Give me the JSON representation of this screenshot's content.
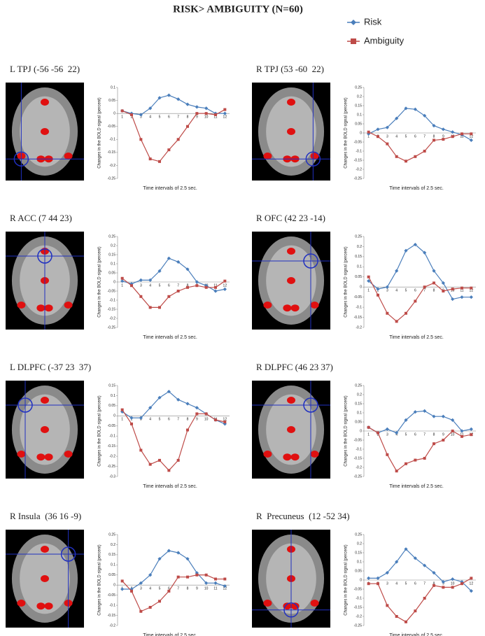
{
  "title": "RISK> AMBIGUITY (N=60)",
  "chart_data": [
    {
      "type": "line",
      "title": "L TPJ (-56 -56  22)",
      "ylabel": "Changes in the BOLD signal (percent)",
      "xlabel": "Time intervals of 2.5 sec.",
      "categories": [
        1,
        2,
        3,
        4,
        5,
        6,
        7,
        8,
        9,
        10,
        11,
        12
      ],
      "ylim": [
        -0.25,
        0.1
      ],
      "yticks": [
        0.1,
        0.05,
        0,
        -0.05,
        -0.1,
        -0.15,
        -0.2,
        -0.25
      ],
      "series": [
        {
          "name": "Risk",
          "color": "#4a7ebb",
          "values": [
            0.01,
            0,
            -0.005,
            0.02,
            0.06,
            0.07,
            0.055,
            0.035,
            0.025,
            0.02,
            0,
            0
          ]
        },
        {
          "name": "Ambiguity",
          "color": "#be4b48",
          "values": [
            0.01,
            -0.005,
            -0.1,
            -0.175,
            -0.185,
            -0.14,
            -0.1,
            -0.05,
            0,
            0,
            -0.005,
            0.015
          ]
        }
      ]
    },
    {
      "type": "line",
      "title": "R TPJ (53 -60  22)",
      "ylabel": "Changes in the BOLD signal (percent)",
      "xlabel": "Time intervals of 2.5 sec.",
      "categories": [
        1,
        2,
        3,
        4,
        5,
        6,
        7,
        8,
        9,
        10,
        11,
        12
      ],
      "ylim": [
        -0.25,
        0.25
      ],
      "yticks": [
        0.25,
        0.2,
        0.15,
        0.1,
        0.05,
        0,
        -0.05,
        -0.1,
        -0.15,
        -0.2,
        -0.25
      ],
      "series": [
        {
          "color": "#4a7ebb",
          "values": [
            -0.005,
            0.02,
            0.03,
            0.08,
            0.135,
            0.13,
            0.095,
            0.04,
            0.02,
            0.005,
            -0.01,
            -0.04
          ]
        },
        {
          "color": "#be4b48",
          "values": [
            0.005,
            -0.02,
            -0.06,
            -0.13,
            -0.155,
            -0.13,
            -0.1,
            -0.04,
            -0.035,
            -0.02,
            -0.005,
            -0.005
          ]
        }
      ]
    },
    {
      "type": "line",
      "title": "R ACC (7 44 23)",
      "ylabel": "Changes in the BOLD signal (percent)",
      "xlabel": "Time intervals of 2.5 sec.",
      "categories": [
        1,
        2,
        3,
        4,
        5,
        6,
        7,
        8,
        9,
        10,
        11,
        12
      ],
      "ylim": [
        -0.25,
        0.25
      ],
      "yticks": [
        0.25,
        0.2,
        0.15,
        0.1,
        0.05,
        0,
        -0.05,
        -0.1,
        -0.15,
        -0.2,
        -0.25
      ],
      "series": [
        {
          "color": "#4a7ebb",
          "values": [
            0.005,
            -0.01,
            0.01,
            0.01,
            0.06,
            0.13,
            0.11,
            0.07,
            0,
            -0.02,
            -0.05,
            -0.04
          ]
        },
        {
          "color": "#be4b48",
          "values": [
            0.02,
            -0.02,
            -0.08,
            -0.14,
            -0.14,
            -0.08,
            -0.05,
            -0.03,
            -0.02,
            -0.03,
            -0.03,
            0.005
          ]
        }
      ]
    },
    {
      "type": "line",
      "title": "R OFC (42 23 -14)",
      "ylabel": "Changes in the BOLD signal (percent)",
      "xlabel": "Time intervals of 2.5 sec.",
      "categories": [
        1,
        2,
        3,
        4,
        5,
        6,
        7,
        8,
        9,
        10,
        11,
        12
      ],
      "ylim": [
        -0.2,
        0.25
      ],
      "yticks": [
        0.25,
        0.2,
        0.15,
        0.1,
        0.05,
        0,
        -0.05,
        -0.1,
        -0.15,
        -0.2
      ],
      "series": [
        {
          "color": "#4a7ebb",
          "values": [
            0.03,
            -0.01,
            0,
            0.08,
            0.18,
            0.21,
            0.17,
            0.08,
            0.02,
            -0.06,
            -0.05,
            -0.05
          ]
        },
        {
          "color": "#be4b48",
          "values": [
            0.05,
            -0.04,
            -0.13,
            -0.17,
            -0.13,
            -0.07,
            0,
            0.02,
            -0.02,
            -0.01,
            -0.005,
            -0.005
          ]
        }
      ]
    },
    {
      "type": "line",
      "title": "L DLPFC (-37 23  37)",
      "ylabel": "Changes in the BOLD signal (percent)",
      "xlabel": "Time intervals of 2.5 sec.",
      "categories": [
        1,
        2,
        3,
        4,
        5,
        6,
        7,
        8,
        9,
        10,
        11,
        12
      ],
      "ylim": [
        -0.3,
        0.15
      ],
      "yticks": [
        0.15,
        0.1,
        0.05,
        0,
        -0.05,
        -0.1,
        -0.15,
        -0.2,
        -0.25,
        -0.3
      ],
      "series": [
        {
          "color": "#4a7ebb",
          "values": [
            0.02,
            -0.01,
            -0.01,
            0.04,
            0.09,
            0.12,
            0.08,
            0.06,
            0.04,
            0.01,
            -0.02,
            -0.04
          ]
        },
        {
          "color": "#be4b48",
          "values": [
            0.03,
            -0.04,
            -0.17,
            -0.24,
            -0.22,
            -0.27,
            -0.22,
            -0.07,
            0.01,
            0.01,
            -0.02,
            -0.03
          ]
        }
      ]
    },
    {
      "type": "line",
      "title": "R DLPFC (46 23 37)",
      "ylabel": "Changes in the BOLD signal (percent)",
      "xlabel": "Time intervals of 2.5 sec.",
      "categories": [
        1,
        2,
        3,
        4,
        5,
        6,
        7,
        8,
        9,
        10,
        11,
        12
      ],
      "ylim": [
        -0.25,
        0.25
      ],
      "yticks": [
        0.25,
        0.2,
        0.15,
        0.1,
        0.05,
        0,
        -0.05,
        -0.1,
        -0.15,
        -0.2,
        -0.25
      ],
      "series": [
        {
          "color": "#4a7ebb",
          "values": [
            0.02,
            -0.01,
            0.01,
            -0.01,
            0.06,
            0.105,
            0.11,
            0.08,
            0.08,
            0.06,
            0,
            0.01
          ]
        },
        {
          "color": "#be4b48",
          "values": [
            0.02,
            -0.01,
            -0.13,
            -0.22,
            -0.18,
            -0.16,
            -0.15,
            -0.07,
            -0.05,
            0,
            -0.03,
            -0.02
          ]
        }
      ]
    },
    {
      "type": "line",
      "title": "R Insula  (36 16 -9)",
      "ylabel": "Changes in the BOLD signal (percent)",
      "xlabel": "Time intervals of 2.5 sec.",
      "categories": [
        1,
        2,
        3,
        4,
        5,
        6,
        7,
        8,
        9,
        10,
        11,
        12
      ],
      "ylim": [
        -0.2,
        0.25
      ],
      "yticks": [
        0.25,
        0.2,
        0.15,
        0.1,
        0.05,
        0,
        -0.05,
        -0.1,
        -0.15,
        -0.2
      ],
      "series": [
        {
          "color": "#4a7ebb",
          "values": [
            -0.02,
            -0.02,
            0.01,
            0.05,
            0.13,
            0.17,
            0.16,
            0.13,
            0.06,
            0.01,
            0.01,
            -0.005
          ]
        },
        {
          "color": "#be4b48",
          "values": [
            0.02,
            -0.03,
            -0.13,
            -0.11,
            -0.08,
            -0.03,
            0.04,
            0.04,
            0.05,
            0.05,
            0.03,
            0.03
          ]
        }
      ]
    },
    {
      "type": "line",
      "title": "R  Precuneus  (12 -52 34)",
      "ylabel": "Changes in the BOLD signal (percent)",
      "xlabel": "Time intervals of 2.5 sec.",
      "categories": [
        1,
        2,
        3,
        4,
        5,
        6,
        7,
        8,
        9,
        10,
        11,
        12
      ],
      "ylim": [
        -0.25,
        0.25
      ],
      "yticks": [
        0.25,
        0.2,
        0.15,
        0.1,
        0.05,
        0,
        -0.05,
        -0.1,
        -0.15,
        -0.2,
        -0.25
      ],
      "series": [
        {
          "color": "#4a7ebb",
          "values": [
            0.01,
            0.01,
            0.04,
            0.1,
            0.17,
            0.12,
            0.08,
            0.04,
            -0.01,
            0.005,
            -0.01,
            -0.06
          ]
        },
        {
          "color": "#be4b48",
          "values": [
            -0.02,
            -0.02,
            -0.14,
            -0.2,
            -0.23,
            -0.17,
            -0.1,
            -0.03,
            -0.04,
            -0.04,
            -0.02,
            0.01
          ]
        }
      ]
    }
  ]
}
